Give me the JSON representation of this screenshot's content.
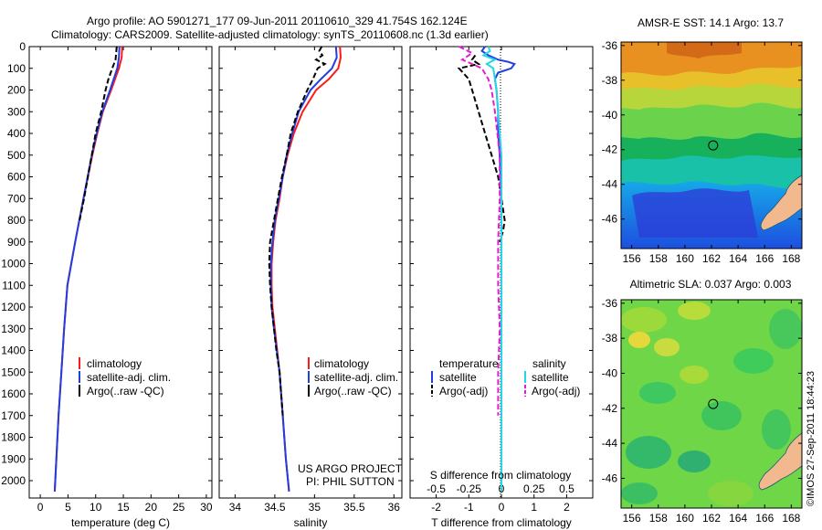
{
  "header": {
    "line1": "Argo profile: AO 5901271_177 09-Jun-2011 20110610_329 41.754S 162.124E",
    "line2": "Climatology: CARS2009. Satellite-adjusted climatology: synTS_20110608.nc (1.3d earlier)"
  },
  "colors": {
    "climatology": "#ff1a1a",
    "satellite_T": "#1f3fe0",
    "argo_T": "#000000",
    "satellite_S": "#23d7e6",
    "argo_S": "#e51bd6"
  },
  "chart_data": [
    {
      "type": "line",
      "panel": "temperature",
      "xlabel": "temperature (deg C)",
      "ylabel": "",
      "xlim": [
        -2,
        31
      ],
      "ylim": [
        2080,
        0
      ],
      "xticks": [
        "0",
        "5",
        "10",
        "15",
        "20",
        "25",
        "30"
      ],
      "yticks": [
        "0",
        "100",
        "200",
        "300",
        "400",
        "500",
        "600",
        "700",
        "800",
        "900",
        "1000",
        "1100",
        "1200",
        "1300",
        "1400",
        "1500",
        "1600",
        "1700",
        "1800",
        "1900",
        "2000"
      ],
      "legend": [
        "climatology",
        "satellite-adj. clim.",
        "Argo(..raw -QC)"
      ],
      "series": [
        {
          "name": "climatology",
          "style": "solid",
          "y": [
            0,
            50,
            100,
            200,
            300,
            400,
            500,
            700,
            900,
            1100,
            1300,
            1500,
            1700,
            1900,
            2050
          ],
          "x": [
            14.8,
            14.7,
            14.2,
            12.8,
            11.3,
            10.3,
            9.4,
            7.8,
            6.3,
            4.9,
            4.3,
            3.8,
            3.3,
            2.9,
            2.6
          ]
        },
        {
          "name": "satellite-adj. clim.",
          "style": "solid",
          "y": [
            0,
            50,
            100,
            200,
            300,
            400,
            500,
            700,
            900,
            1100,
            1300,
            1500,
            1700,
            1900,
            2050
          ],
          "x": [
            14.3,
            14.2,
            13.9,
            12.6,
            11.2,
            10.2,
            9.3,
            7.8,
            6.3,
            4.9,
            4.3,
            3.8,
            3.3,
            2.9,
            2.6
          ]
        },
        {
          "name": "Argo(..raw -QC)",
          "style": "dashed",
          "y": [
            0,
            30,
            60,
            100,
            150,
            200,
            300,
            400,
            500,
            600,
            700,
            800
          ],
          "x": [
            13.8,
            13.7,
            13.6,
            13.0,
            12.3,
            11.8,
            11.0,
            10.0,
            9.3,
            8.6,
            7.9,
            7.1
          ]
        }
      ]
    },
    {
      "type": "line",
      "panel": "salinity",
      "xlabel": "salinity",
      "xlim": [
        33.8,
        36.1
      ],
      "ylim": [
        2080,
        0
      ],
      "xticks": [
        "34",
        "34.5",
        "35",
        "35.5",
        "36"
      ],
      "legend": [
        "climatology",
        "satellite-adj. clim.",
        "Argo(..raw -QC)"
      ],
      "annotation": [
        "US ARGO PROJECT",
        "PI: PHIL SUTTON"
      ],
      "series": [
        {
          "name": "climatology",
          "style": "solid",
          "y": [
            0,
            50,
            100,
            150,
            200,
            300,
            400,
            500,
            600,
            700,
            800,
            900,
            1000,
            1100,
            1200,
            1300,
            1500,
            1700,
            1900,
            2050
          ],
          "x": [
            35.32,
            35.33,
            35.3,
            35.18,
            35.02,
            34.85,
            34.74,
            34.66,
            34.6,
            34.56,
            34.51,
            34.48,
            34.46,
            34.46,
            34.47,
            34.5,
            34.56,
            34.6,
            34.64,
            34.68
          ]
        },
        {
          "name": "satellite-adj. clim.",
          "style": "solid",
          "y": [
            0,
            50,
            100,
            150,
            200,
            300,
            400,
            500,
            600,
            700,
            800,
            900,
            1000,
            1100,
            1200,
            1300,
            1500,
            1700,
            1900,
            2050
          ],
          "x": [
            35.27,
            35.28,
            35.22,
            35.08,
            34.95,
            34.8,
            34.72,
            34.65,
            34.6,
            34.55,
            34.5,
            34.47,
            34.45,
            34.45,
            34.46,
            34.49,
            34.56,
            34.6,
            34.64,
            34.68
          ]
        },
        {
          "name": "Argo(..raw -QC)",
          "style": "dashed",
          "y": [
            0,
            20,
            40,
            60,
            80,
            100,
            150,
            200,
            300,
            400,
            500,
            600,
            700,
            800,
            900,
            1000,
            1100,
            1200,
            1300,
            1400,
            1500,
            1600,
            1700
          ],
          "x": [
            35.09,
            35.06,
            35.1,
            35.02,
            35.13,
            35.04,
            34.98,
            34.91,
            34.79,
            34.7,
            34.65,
            34.59,
            34.54,
            34.49,
            34.44,
            34.43,
            34.44,
            34.46,
            34.49,
            34.52,
            34.56,
            34.58,
            34.6
          ]
        }
      ]
    },
    {
      "type": "line",
      "panel": "difference",
      "xlabel": "T difference from climatology",
      "xlabel2": "S difference from climatology",
      "xlim": [
        -2.8,
        2.8
      ],
      "ylim": [
        2080,
        0
      ],
      "xticks_T": [
        "-2",
        "-1",
        "0",
        "1",
        "2"
      ],
      "xticks_S": [
        "-0.5",
        "-0.25",
        "0",
        "0.25",
        "0.5"
      ],
      "legend": {
        "temperature_header": "temperature",
        "salinity_header": "salinity",
        "satellite": "satellite",
        "argo": "Argo(-adj)"
      },
      "series": [
        {
          "name": "T satellite",
          "style": "solid",
          "y": [
            0,
            20,
            40,
            60,
            70,
            80,
            100,
            120,
            150,
            200,
            300,
            400,
            500,
            700,
            900,
            1100,
            1300,
            1500,
            1700,
            1900,
            2050
          ],
          "x": [
            -0.5,
            -0.6,
            -0.4,
            -0.1,
            0.2,
            0.4,
            0.3,
            -0.1,
            -0.2,
            -0.15,
            -0.1,
            -0.1,
            -0.05,
            0,
            0,
            0,
            0,
            0,
            0,
            0,
            0
          ]
        },
        {
          "name": "T Argo",
          "style": "dashed",
          "y": [
            40,
            60,
            80,
            100,
            150,
            200,
            300,
            400,
            500,
            600,
            700,
            800,
            850,
            900
          ],
          "x": [
            -0.8,
            -0.9,
            -0.7,
            -1.3,
            -1.0,
            -0.9,
            -0.7,
            -0.5,
            -0.3,
            -0.1,
            0.0,
            0.1,
            0.05,
            -0.05
          ]
        },
        {
          "name": "S satellite",
          "style": "solid",
          "y": [
            0,
            20,
            40,
            60,
            80,
            100,
            150,
            200,
            300,
            400,
            500,
            700,
            900,
            1100,
            1300,
            1500,
            1700,
            1900,
            2050
          ],
          "x": [
            -0.4,
            -0.35,
            -0.55,
            -0.2,
            -0.45,
            -0.25,
            -0.2,
            -0.15,
            -0.1,
            -0.05,
            0,
            0,
            0,
            0,
            0,
            0,
            0,
            0,
            0
          ]
        },
        {
          "name": "S Argo",
          "style": "dashed",
          "y": [
            0,
            30,
            60,
            80,
            100,
            150,
            200,
            300,
            500,
            700,
            900,
            1100,
            1300,
            1500,
            1700
          ],
          "x": [
            -1.3,
            -0.9,
            -1.2,
            -0.9,
            -0.6,
            -0.4,
            -0.3,
            -0.2,
            -0.05,
            -0.05,
            -0.1,
            -0.1,
            -0.05,
            -0.1,
            -0.1
          ]
        }
      ]
    },
    {
      "type": "heatmap",
      "panel": "sst_map",
      "title": "AMSR-E SST: 14.1 Argo: 13.7",
      "xlim": [
        155.2,
        168.8
      ],
      "ylim": [
        -47.7,
        -35.8
      ],
      "xticks": [
        "156",
        "158",
        "160",
        "162",
        "164",
        "166",
        "168"
      ],
      "yticks": [
        "-36",
        "-38",
        "-40",
        "-42",
        "-44",
        "-46"
      ],
      "marker": {
        "lon": 162.124,
        "lat": -41.754
      }
    },
    {
      "type": "heatmap",
      "panel": "sla_map",
      "title": "Altimetric SLA: 0.037 Argo: 0.003",
      "xlim": [
        155.2,
        168.8
      ],
      "ylim": [
        -47.7,
        -35.8
      ],
      "xticks": [
        "156",
        "158",
        "160",
        "162",
        "164",
        "166",
        "168"
      ],
      "yticks": [
        "-36",
        "-38",
        "-40",
        "-42",
        "-44",
        "-46"
      ],
      "marker": {
        "lon": 162.124,
        "lat": -41.754
      }
    }
  ],
  "footer": {
    "stamp": "©IMOS 27-Sep-2011 18:44:23"
  }
}
